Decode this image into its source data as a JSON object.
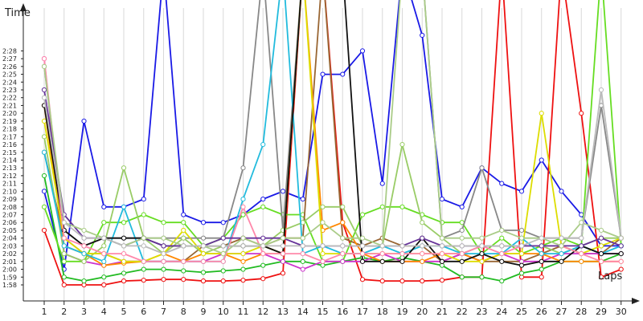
{
  "chart_data": {
    "type": "line",
    "title": "",
    "ylabel": "Time",
    "xlabel": "Laps",
    "x": [
      1,
      2,
      3,
      4,
      5,
      6,
      7,
      8,
      9,
      10,
      11,
      12,
      13,
      14,
      15,
      16,
      17,
      18,
      19,
      20,
      21,
      22,
      23,
      24,
      25,
      26,
      27,
      28,
      29,
      30
    ],
    "y_tick_labels": [
      "1:58",
      "1:59",
      "2:00",
      "2:01",
      "2:02",
      "2:03",
      "2:04",
      "2:05",
      "2:06",
      "2:07",
      "2:08",
      "2:09",
      "2:10",
      "2:11",
      "2:12",
      "2:13",
      "2:14",
      "2:15",
      "2:16",
      "2:17",
      "2:18",
      "2:19",
      "2:20",
      "2:21",
      "2:22",
      "2:23",
      "2:24",
      "2:25",
      "2:26",
      "2:27",
      "2:28"
    ],
    "y_unit": "seconds",
    "ylim": [
      117,
      149
    ],
    "grid": "vertical",
    "series": [
      {
        "color": "#1a1ae6",
        "values": [
          130,
          120,
          139,
          128,
          128,
          129,
          null,
          127,
          126,
          126,
          127,
          129,
          130,
          129,
          145,
          145,
          148,
          131,
          null,
          150,
          129,
          128,
          133,
          131,
          130,
          134,
          130,
          127,
          123,
          123
        ]
      },
      {
        "color": "#ee1111",
        "values": [
          125,
          118,
          118,
          118,
          118.5,
          118.6,
          118.7,
          118.7,
          118.5,
          118.5,
          118.6,
          118.8,
          119.5,
          null,
          null,
          126,
          118.7,
          118.5,
          118.5,
          118.5,
          118.6,
          119,
          119,
          null,
          119,
          119,
          null,
          140,
          119,
          120
        ]
      },
      {
        "color": "#22bb22",
        "values": [
          132,
          119,
          118.5,
          119,
          119.5,
          120,
          120,
          119.8,
          119.6,
          119.8,
          120,
          120.5,
          121,
          121,
          120.5,
          121,
          121.5,
          121,
          121.5,
          121,
          120.5,
          119,
          119,
          118.5,
          119.5,
          120,
          121,
          121,
          121,
          122
        ]
      },
      {
        "color": "#66dd22",
        "values": [
          128,
          121,
          121,
          126,
          126,
          127,
          126,
          126,
          123,
          124,
          127,
          128,
          127,
          127,
          121,
          121,
          127,
          128,
          128,
          127,
          126,
          126,
          122,
          124,
          122,
          123,
          124,
          123,
          null,
          123
        ]
      },
      {
        "color": "#996633",
        "values": [
          135,
          124,
          122,
          122,
          121,
          121,
          121,
          121,
          123,
          123,
          124,
          123,
          124,
          124,
          null,
          124,
          123,
          124,
          123,
          123,
          121,
          122,
          121,
          121,
          121,
          122,
          123,
          122,
          122,
          124
        ]
      },
      {
        "color": "#cc33cc",
        "values": [
          147,
          122,
          121,
          120.5,
          121,
          121,
          121,
          121,
          121,
          122,
          122,
          122,
          121,
          120,
          121,
          121,
          121,
          122,
          121,
          121,
          121,
          122,
          121,
          122,
          121,
          121,
          122,
          122,
          122,
          122
        ]
      },
      {
        "color": "#ff8800",
        "values": [
          141,
          123,
          122,
          120.5,
          120.8,
          121,
          122,
          121,
          122,
          122,
          121,
          122,
          122,
          null,
          125,
          126,
          122,
          121,
          121,
          121,
          122,
          122,
          121,
          122,
          122,
          122,
          121,
          121,
          121,
          121
        ]
      },
      {
        "color": "#888888",
        "values": [
          146,
          125,
          123,
          124,
          124,
          124,
          124,
          124,
          124,
          124,
          133,
          null,
          125,
          null,
          null,
          null,
          null,
          null,
          null,
          null,
          124,
          125,
          133,
          125,
          125,
          124,
          124,
          124,
          141,
          124
        ]
      },
      {
        "color": "#99cc66",
        "values": [
          137,
          122,
          121,
          123,
          133,
          124,
          122,
          124,
          122,
          123,
          123,
          123,
          125,
          126,
          128,
          128,
          123,
          123,
          136,
          126,
          124,
          122,
          123,
          123,
          123,
          123,
          122,
          123,
          124,
          124
        ]
      },
      {
        "color": "#dddd00",
        "values": [
          139,
          124,
          122,
          122,
          121,
          121,
          122,
          125,
          122,
          122,
          122,
          123,
          122,
          null,
          122,
          122,
          122,
          122,
          122,
          122,
          122,
          121,
          121,
          122,
          122,
          140,
          123,
          122,
          123,
          124
        ]
      },
      {
        "color": "#22bbdd",
        "values": [
          135,
          123,
          122,
          121,
          128,
          121,
          121,
          121,
          121,
          121,
          129,
          136,
          null,
          122,
          123,
          122,
          122,
          123,
          122,
          123,
          123,
          122,
          122,
          122,
          124,
          122,
          122,
          123,
          122,
          123
        ]
      },
      {
        "color": "#111111",
        "values": [
          141,
          125,
          123,
          124,
          124,
          124,
          123,
          123,
          123,
          123,
          123,
          123,
          122,
          null,
          null,
          null,
          121,
          121,
          121,
          124,
          121,
          121,
          122,
          121,
          120.5,
          121,
          121,
          123,
          122,
          122
        ]
      },
      {
        "color": "#ff88aa",
        "values": [
          147,
          124,
          123,
          122,
          122,
          121,
          121,
          121,
          121,
          121,
          128,
          122,
          122,
          122,
          121,
          122,
          122,
          122,
          122,
          122,
          122,
          122,
          123,
          122,
          123,
          123,
          123,
          122,
          121,
          121
        ]
      },
      {
        "color": "#663399",
        "values": [
          143,
          127,
          124,
          124,
          123,
          124,
          123,
          123,
          123,
          124,
          124,
          124,
          124,
          123,
          123,
          123,
          123,
          123,
          123,
          124,
          123,
          123,
          123,
          123,
          123,
          123,
          123,
          123,
          124,
          123
        ]
      },
      {
        "color": "#aacc88",
        "values": [
          146,
          126,
          125,
          124,
          123,
          124,
          124,
          123,
          123,
          122,
          124,
          123,
          124,
          124,
          126,
          124,
          124,
          123,
          null,
          null,
          124,
          124,
          124,
          125,
          124,
          124,
          123,
          126,
          125,
          124
        ]
      },
      {
        "color": "#bbbbbb",
        "values": [
          142,
          126,
          124,
          124,
          123,
          123,
          122,
          123,
          123,
          123,
          123,
          123,
          123,
          123,
          123,
          123,
          123,
          123,
          123,
          123,
          123,
          123,
          123,
          123,
          123,
          124,
          124,
          124,
          143,
          124
        ]
      }
    ]
  }
}
